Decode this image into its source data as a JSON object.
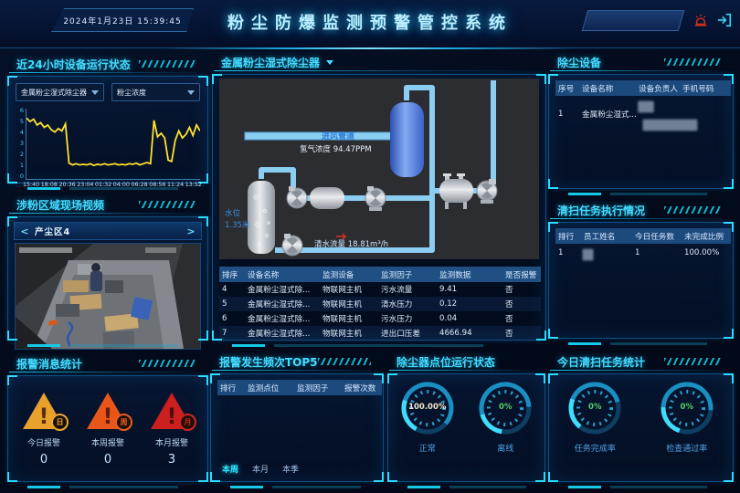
{
  "header": {
    "datetime": "2024年1月23日  15:39:45",
    "title": "粉尘防爆监测预警管控系统"
  },
  "icons": {
    "alarm": "siren",
    "logout": "exit-arrow",
    "prev": "<",
    "next": ">"
  },
  "device_status_panel": {
    "title": "近24小时设备运行状态",
    "device_select": "金属粉尘湿式除尘器",
    "metric_select": "粉尘浓度"
  },
  "video_panel": {
    "title": "涉粉区域现场视频",
    "camera": "产尘区4"
  },
  "alarm_stats_panel": {
    "title": "报警消息统计",
    "items": [
      {
        "badge": "日",
        "label": "今日报警",
        "value": "0",
        "color": "#e8a22c"
      },
      {
        "badge": "周",
        "label": "本周报警",
        "value": "0",
        "color": "#e8561a"
      },
      {
        "badge": "月",
        "label": "本月报警",
        "value": "3",
        "color": "#cc1f1f"
      }
    ]
  },
  "collector_panel": {
    "title": "金属粉尘湿式除尘器",
    "diagram": {
      "inlet_pipe_label": "进风管道",
      "gas_label": "氢气浓度 94.47PPM",
      "water_level_label": "水位",
      "water_level_value": "1.35米",
      "flow_label": "清水流量 18.81m³/h"
    },
    "table": {
      "headers": [
        "排序",
        "设备名称",
        "监测设备",
        "监测因子",
        "监测数据",
        "是否报警"
      ],
      "rows": [
        [
          "4",
          "金属粉尘湿式除...",
          "物联网主机",
          "污水流量",
          "9.41",
          "否"
        ],
        [
          "5",
          "金属粉尘湿式除...",
          "物联网主机",
          "清水压力",
          "0.12",
          "否"
        ],
        [
          "6",
          "金属粉尘湿式除...",
          "物联网主机",
          "污水压力",
          "0.04",
          "否"
        ],
        [
          "7",
          "金属粉尘湿式除...",
          "物联网主机",
          "进出口压差",
          "4666.94",
          "否"
        ]
      ]
    }
  },
  "alarm_top5_panel": {
    "title": "报警发生频次TOP5",
    "headers": [
      "排行",
      "监测点位",
      "监测因子",
      "报警次数"
    ],
    "rows": [],
    "tabs": [
      {
        "label": "本周",
        "active": true
      },
      {
        "label": "本月",
        "active": false
      },
      {
        "label": "本季",
        "active": false
      }
    ]
  },
  "collector_status_panel": {
    "title": "除尘器点位运行状态",
    "gauges": [
      {
        "value": "100.00%",
        "label": "正常",
        "value_color": "#f2e6c8"
      },
      {
        "value": "0%",
        "label": "离线",
        "value_color": "#57d06a"
      }
    ]
  },
  "dust_devices_panel": {
    "title": "除尘设备",
    "headers": [
      "序号",
      "设备名称",
      "设备负责人",
      "手机号码"
    ],
    "rows": [
      [
        "1",
        "金属粉尘湿式...",
        "███",
        "███████████"
      ]
    ]
  },
  "cleaning_tasks_panel": {
    "title": "清扫任务执行情况",
    "headers": [
      "排行",
      "员工姓名",
      "今日任务数",
      "未完成比例"
    ],
    "rows": [
      [
        "1",
        "██",
        "1",
        "100.00%"
      ]
    ]
  },
  "today_cleaning_panel": {
    "title": "今日清扫任务统计",
    "gauges": [
      {
        "value": "0%",
        "label": "任务完成率",
        "value_color": "#57d06a"
      },
      {
        "value": "0%",
        "label": "检查通过率",
        "value_color": "#57d06a"
      }
    ]
  },
  "chart_data": [
    {
      "type": "line",
      "title": "近24小时设备运行状态",
      "series": [
        {
          "name": "粉尘浓度",
          "color": "#ffe12e",
          "values": [
            5.2,
            4.9,
            5.1,
            4.6,
            4.8,
            4.4,
            4.6,
            4.2,
            4.0,
            4.3,
            4.1,
            4.7,
            1.35,
            1.2,
            1.3,
            1.2,
            1.25,
            1.2,
            1.3,
            1.15,
            1.25,
            1.2,
            1.3,
            1.2,
            1.25,
            1.3,
            1.2,
            1.25,
            1.2,
            1.3,
            1.25,
            1.35,
            1.2,
            1.3,
            1.4,
            1.3,
            5.0,
            3.6,
            3.9,
            3.5,
            1.6,
            1.5,
            3.3,
            4.1,
            3.5,
            3.8,
            4.4,
            3.7,
            4.6,
            4.1
          ]
        }
      ],
      "x_ticks": [
        "15:40",
        "18:08",
        "20:36",
        "23:04",
        "01:32",
        "04:00",
        "06:28",
        "08:56",
        "11:24",
        "13:52"
      ],
      "y_ticks": [
        0,
        1,
        2,
        3,
        4,
        5,
        6
      ],
      "ylim": [
        0,
        6
      ],
      "grid": false,
      "legend": "none"
    },
    {
      "type": "donut",
      "title": "除尘器点位运行状态",
      "items": [
        {
          "label": "正常",
          "value": 100.0
        },
        {
          "label": "离线",
          "value": 0
        }
      ]
    },
    {
      "type": "donut",
      "title": "今日清扫任务统计",
      "items": [
        {
          "label": "任务完成率",
          "value": 0
        },
        {
          "label": "检查通过率",
          "value": 0
        }
      ]
    }
  ]
}
